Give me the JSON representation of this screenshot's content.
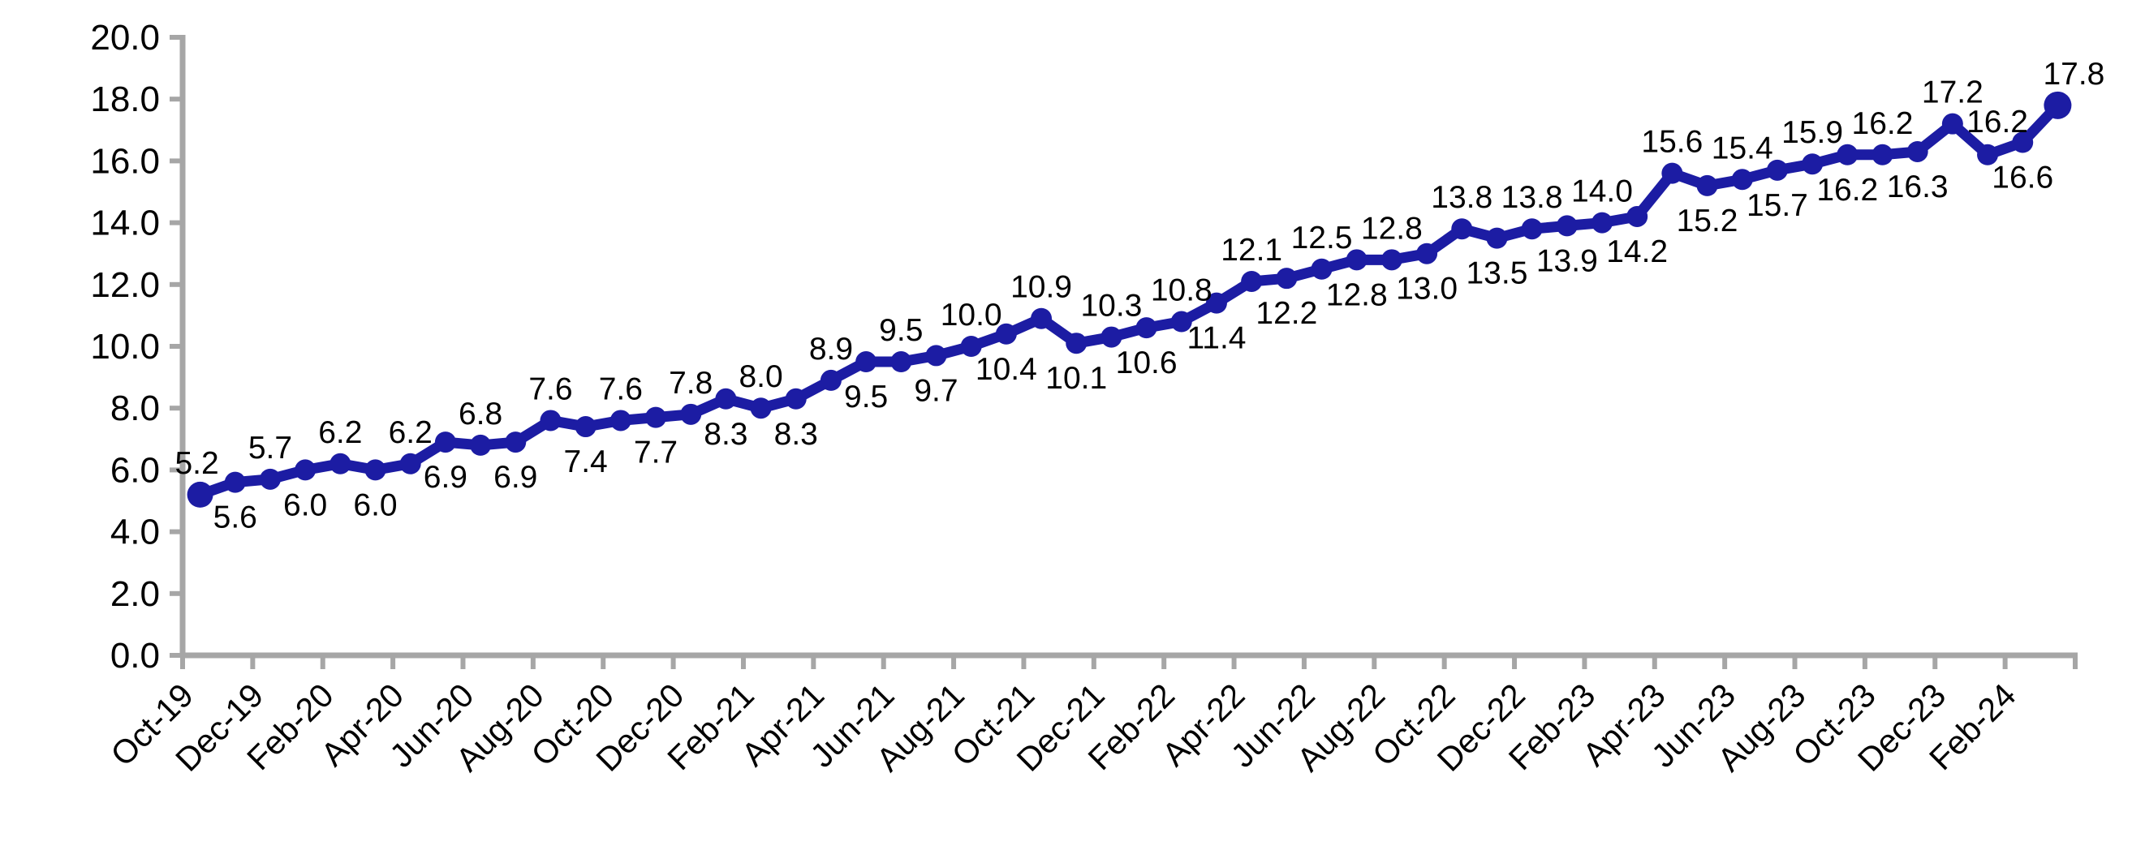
{
  "chart_data": {
    "type": "line",
    "title": "",
    "xlabel": "",
    "ylabel": "",
    "categories": [
      "Oct-19",
      "Nov-19",
      "Dec-19",
      "Jan-20",
      "Feb-20",
      "Mar-20",
      "Apr-20",
      "May-20",
      "Jun-20",
      "Jul-20",
      "Aug-20",
      "Sep-20",
      "Oct-20",
      "Nov-20",
      "Dec-20",
      "Jan-21",
      "Feb-21",
      "Mar-21",
      "Apr-21",
      "May-21",
      "Jun-21",
      "Jul-21",
      "Aug-21",
      "Sep-21",
      "Oct-21",
      "Nov-21",
      "Dec-21",
      "Jan-22",
      "Feb-22",
      "Mar-22",
      "Apr-22",
      "May-22",
      "Jun-22",
      "Jul-22",
      "Aug-22",
      "Sep-22",
      "Oct-22",
      "Nov-22",
      "Dec-22",
      "Jan-23",
      "Feb-23",
      "Mar-23",
      "Apr-23",
      "May-23",
      "Jun-23",
      "Jul-23",
      "Aug-23",
      "Sep-23",
      "Oct-23",
      "Nov-23",
      "Dec-23",
      "Jan-24",
      "Feb-24",
      "Mar-24"
    ],
    "series": [
      {
        "name": "",
        "color": "#1C1CA3",
        "values": [
          5.2,
          5.6,
          5.7,
          6.0,
          6.2,
          6.0,
          6.2,
          6.9,
          6.8,
          6.9,
          7.6,
          7.4,
          7.6,
          7.7,
          7.8,
          8.3,
          8.0,
          8.3,
          8.9,
          9.5,
          9.5,
          9.7,
          10.0,
          10.4,
          10.9,
          10.1,
          10.3,
          10.6,
          10.8,
          11.4,
          12.1,
          12.2,
          12.5,
          12.8,
          12.8,
          13.0,
          13.8,
          13.5,
          13.8,
          13.9,
          14.0,
          14.2,
          15.6,
          15.2,
          15.4,
          15.7,
          15.9,
          16.2,
          16.2,
          16.3,
          17.2,
          16.2,
          16.6,
          17.8
        ],
        "point_labels": [
          "5.2",
          "5.6",
          "5.7",
          "6.0",
          "6.2",
          "6.0",
          "6.2",
          "6.9",
          "6.8",
          "6.9",
          "7.6",
          "7.4",
          "7.6",
          "7.7",
          "7.8",
          "8.3",
          "8.0",
          "8.3",
          "8.9",
          "9.5",
          "9.5",
          "9.7",
          "10.0",
          "10.4",
          "10.9",
          "10.1",
          "10.3",
          "10.6",
          "10.8",
          "11.4",
          "12.1",
          "12.2",
          "12.5",
          "12.8",
          "12.8",
          "13.0",
          "13.8",
          "13.5",
          "13.8",
          "13.9",
          "14.0",
          "14.2",
          "15.6",
          "15.2",
          "15.4",
          "15.7",
          "15.9",
          "16.2",
          "16.2",
          "16.3",
          "17.2",
          "16.2",
          "16.6",
          "17.8"
        ],
        "label_positions": [
          "above",
          "below",
          "above",
          "below",
          "above",
          "below",
          "above",
          "below",
          "above",
          "below",
          "above",
          "below",
          "above",
          "below",
          "above",
          "below",
          "above",
          "below",
          "above",
          "below",
          "above",
          "below",
          "above",
          "below",
          "above",
          "below",
          "above",
          "below",
          "above",
          "below",
          "above",
          "below",
          "above",
          "below",
          "above",
          "below",
          "above",
          "below",
          "above",
          "below",
          "above",
          "below",
          "above",
          "below",
          "above",
          "below",
          "above",
          "below",
          "above",
          "below",
          "above",
          "above",
          "below",
          "above"
        ],
        "label_offsets": {
          "0": [
            -4,
            0
          ],
          "51": [
            12,
            -2
          ],
          "53": [
            20,
            0
          ]
        }
      }
    ],
    "ylim": [
      0.0,
      20.0
    ],
    "y_tick_step": 2.0,
    "y_tick_labels": [
      "0.0",
      "2.0",
      "4.0",
      "6.0",
      "8.0",
      "10.0",
      "12.0",
      "14.0",
      "16.0",
      "18.0",
      "20.0"
    ],
    "x_label_every": 2,
    "x_tick_labels_visible": [
      "Oct-19",
      "Dec-19",
      "Feb-20",
      "Apr-20",
      "Jun-20",
      "Aug-20",
      "Oct-20",
      "Dec-20",
      "Feb-21",
      "Apr-21",
      "Jun-21",
      "Aug-21",
      "Oct-21",
      "Dec-21",
      "Feb-22",
      "Apr-22",
      "Jun-22",
      "Aug-22",
      "Oct-22",
      "Dec-22",
      "Feb-23",
      "Apr-23",
      "Jun-23",
      "Aug-23",
      "Oct-23",
      "Dec-23",
      "Feb-24"
    ],
    "grid": false,
    "legend": "none",
    "axis_color": "#A6A6A6",
    "text_color": "#000000",
    "background": "#FFFFFF"
  }
}
